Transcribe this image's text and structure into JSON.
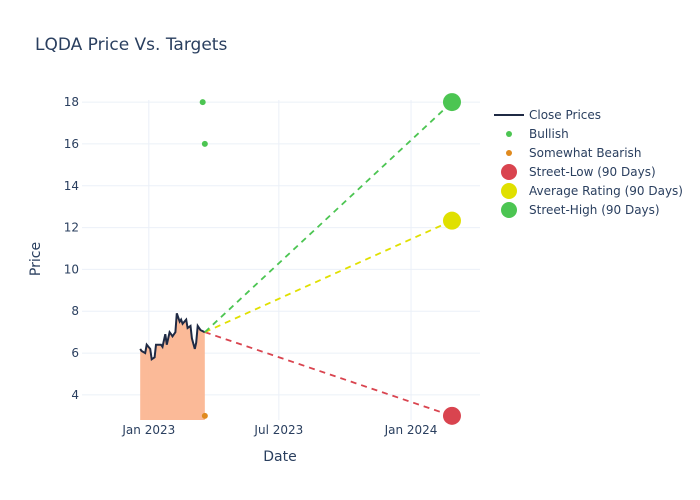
{
  "chart_data": {
    "type": "line",
    "title": "LQDA Price Vs. Targets",
    "xlabel": "Date",
    "ylabel": "Price",
    "xlim": [
      "2022-09-30",
      "2024-04-06"
    ],
    "ylim": [
      2.8,
      18.1
    ],
    "x_ticks": [
      {
        "date": "2023-01-01",
        "label": "Jan 2023"
      },
      {
        "date": "2023-07-01",
        "label": "Jul 2023"
      },
      {
        "date": "2024-01-01",
        "label": "Jan 2024"
      }
    ],
    "y_ticks": [
      4,
      6,
      8,
      10,
      12,
      14,
      16,
      18
    ],
    "grid": true,
    "legend_position": "right",
    "close_prices": {
      "name": "Close Prices",
      "color": "#1f2a44",
      "fill": "#fbb692",
      "x": [
        "2022-12-20",
        "2022-12-22",
        "2022-12-27",
        "2022-12-29",
        "2023-01-03",
        "2023-01-05",
        "2023-01-09",
        "2023-01-11",
        "2023-01-13",
        "2023-01-18",
        "2023-01-20",
        "2023-01-24",
        "2023-01-26",
        "2023-01-30",
        "2023-02-01",
        "2023-02-03",
        "2023-02-07",
        "2023-02-09",
        "2023-02-13",
        "2023-02-15",
        "2023-02-17",
        "2023-02-22",
        "2023-02-24",
        "2023-02-28",
        "2023-03-02",
        "2023-03-06",
        "2023-03-08",
        "2023-03-10",
        "2023-03-14",
        "2023-03-20"
      ],
      "y": [
        6.2,
        6.1,
        6.0,
        6.4,
        6.2,
        5.7,
        5.8,
        6.4,
        6.4,
        6.4,
        6.3,
        6.9,
        6.4,
        7.0,
        6.9,
        6.8,
        7.0,
        7.9,
        7.5,
        7.6,
        7.4,
        7.6,
        7.2,
        7.3,
        6.7,
        6.2,
        6.5,
        7.3,
        7.1,
        7.0
      ]
    },
    "bullish": {
      "name": "Bullish",
      "color": "#4cc552",
      "points": [
        {
          "x": "2023-03-17",
          "y": 18
        },
        {
          "x": "2023-03-20",
          "y": 16
        }
      ]
    },
    "somewhat_bearish": {
      "name": "Somewhat Bearish",
      "color": "#e08a1e",
      "points": [
        {
          "x": "2023-03-20",
          "y": 3
        }
      ]
    },
    "targets": {
      "start": {
        "x": "2023-03-20",
        "y": 7.0
      },
      "end_date": "2024-02-27",
      "series": [
        {
          "name": "Street-Low (90 Days)",
          "value": 3,
          "color": "#d9444f"
        },
        {
          "name": "Average Rating (90 Days)",
          "value": 12.33,
          "color": "#e0e000"
        },
        {
          "name": "Street-High (90 Days)",
          "value": 18,
          "color": "#4cc552"
        }
      ]
    }
  }
}
